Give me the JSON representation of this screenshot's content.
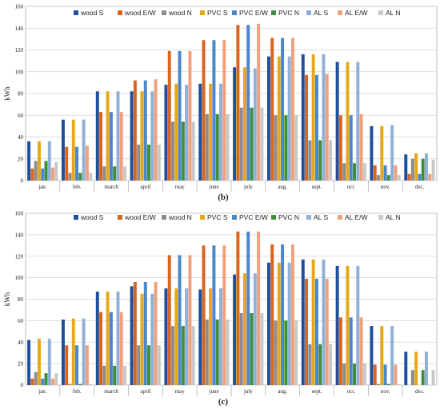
{
  "colors": [
    "#1f4e9c",
    "#d9641e",
    "#8c8c8c",
    "#e6a817",
    "#4a86c8",
    "#3d8f3d",
    "#8fb0d8",
    "#f0a07a",
    "#c8c8c8"
  ],
  "chart_data": [
    {
      "type": "bar",
      "caption": "(b)",
      "ylabel": "kWh",
      "ylim": [
        0,
        160
      ],
      "yticks": [
        0,
        20,
        40,
        60,
        80,
        100,
        120,
        140,
        160
      ],
      "grid": true,
      "legend_position": "top",
      "categories": [
        "jan.",
        "feb.",
        "march",
        "april",
        "may",
        "june",
        "july",
        "aug.",
        "sept.",
        "oct.",
        "nov.",
        "dec."
      ],
      "series": [
        {
          "name": "wood S",
          "values": [
            36,
            56,
            82,
            82,
            88,
            89,
            104,
            114,
            116,
            109,
            50,
            24
          ]
        },
        {
          "name": "wood E/W",
          "values": [
            11,
            31,
            63,
            92,
            119,
            129,
            143,
            131,
            97,
            60,
            14,
            6
          ]
        },
        {
          "name": "wood N",
          "values": [
            18,
            7,
            13,
            33,
            54,
            61,
            67,
            60,
            37,
            16,
            5,
            20
          ]
        },
        {
          "name": "PVC S",
          "values": [
            36,
            56,
            82,
            82,
            89,
            89,
            104,
            114,
            116,
            109,
            50,
            25
          ]
        },
        {
          "name": "PVC E/W",
          "values": [
            11,
            31,
            63,
            92,
            119,
            129,
            143,
            131,
            97,
            60,
            14,
            6
          ]
        },
        {
          "name": "PVC N",
          "values": [
            18,
            7,
            13,
            33,
            54,
            61,
            67,
            60,
            37,
            16,
            5,
            20
          ]
        },
        {
          "name": "AL S",
          "values": [
            36,
            56,
            82,
            82,
            88,
            89,
            103,
            114,
            116,
            109,
            51,
            25
          ]
        },
        {
          "name": "AL E/W",
          "values": [
            12,
            32,
            63,
            93,
            119,
            129,
            144,
            131,
            98,
            61,
            14,
            6
          ]
        },
        {
          "name": "AL N",
          "values": [
            17,
            7,
            13,
            33,
            54,
            61,
            67,
            60,
            37,
            16,
            5,
            19
          ]
        }
      ]
    },
    {
      "type": "bar",
      "caption": "(c)",
      "ylabel": "kWh",
      "ylim": [
        0,
        160
      ],
      "yticks": [
        0,
        20,
        40,
        60,
        80,
        100,
        120,
        140,
        160
      ],
      "grid": true,
      "legend_position": "top",
      "categories": [
        "jan.",
        "feb.",
        "march",
        "april",
        "may",
        "june",
        "july",
        "aug.",
        "sept.",
        "oct.",
        "nov.",
        "dec."
      ],
      "series": [
        {
          "name": "wood S",
          "values": [
            42,
            61,
            87,
            92,
            90,
            89,
            103,
            114,
            117,
            111,
            55,
            31
          ]
        },
        {
          "name": "wood E/W",
          "values": [
            6,
            37,
            68,
            96,
            121,
            130,
            143,
            131,
            99,
            63,
            19,
            0
          ]
        },
        {
          "name": "wood N",
          "values": [
            12,
            1,
            18,
            37,
            55,
            61,
            67,
            60,
            38,
            20,
            1,
            14
          ]
        },
        {
          "name": "PVC S",
          "values": [
            43,
            62,
            87,
            85,
            90,
            90,
            104,
            114,
            117,
            111,
            55,
            31
          ]
        },
        {
          "name": "PVC E/W",
          "values": [
            6,
            37,
            68,
            96,
            121,
            130,
            143,
            131,
            99,
            63,
            19,
            0
          ]
        },
        {
          "name": "PVC N",
          "values": [
            11,
            1,
            18,
            37,
            55,
            61,
            67,
            60,
            38,
            20,
            1,
            14
          ]
        },
        {
          "name": "AL S",
          "values": [
            43,
            62,
            87,
            85,
            90,
            90,
            104,
            114,
            117,
            111,
            55,
            31
          ]
        },
        {
          "name": "AL E/W",
          "values": [
            6,
            37,
            68,
            96,
            121,
            130,
            143,
            131,
            99,
            63,
            19,
            0
          ]
        },
        {
          "name": "AL N",
          "values": [
            11,
            1,
            18,
            37,
            55,
            61,
            67,
            60,
            38,
            20,
            1,
            14
          ]
        }
      ]
    }
  ]
}
